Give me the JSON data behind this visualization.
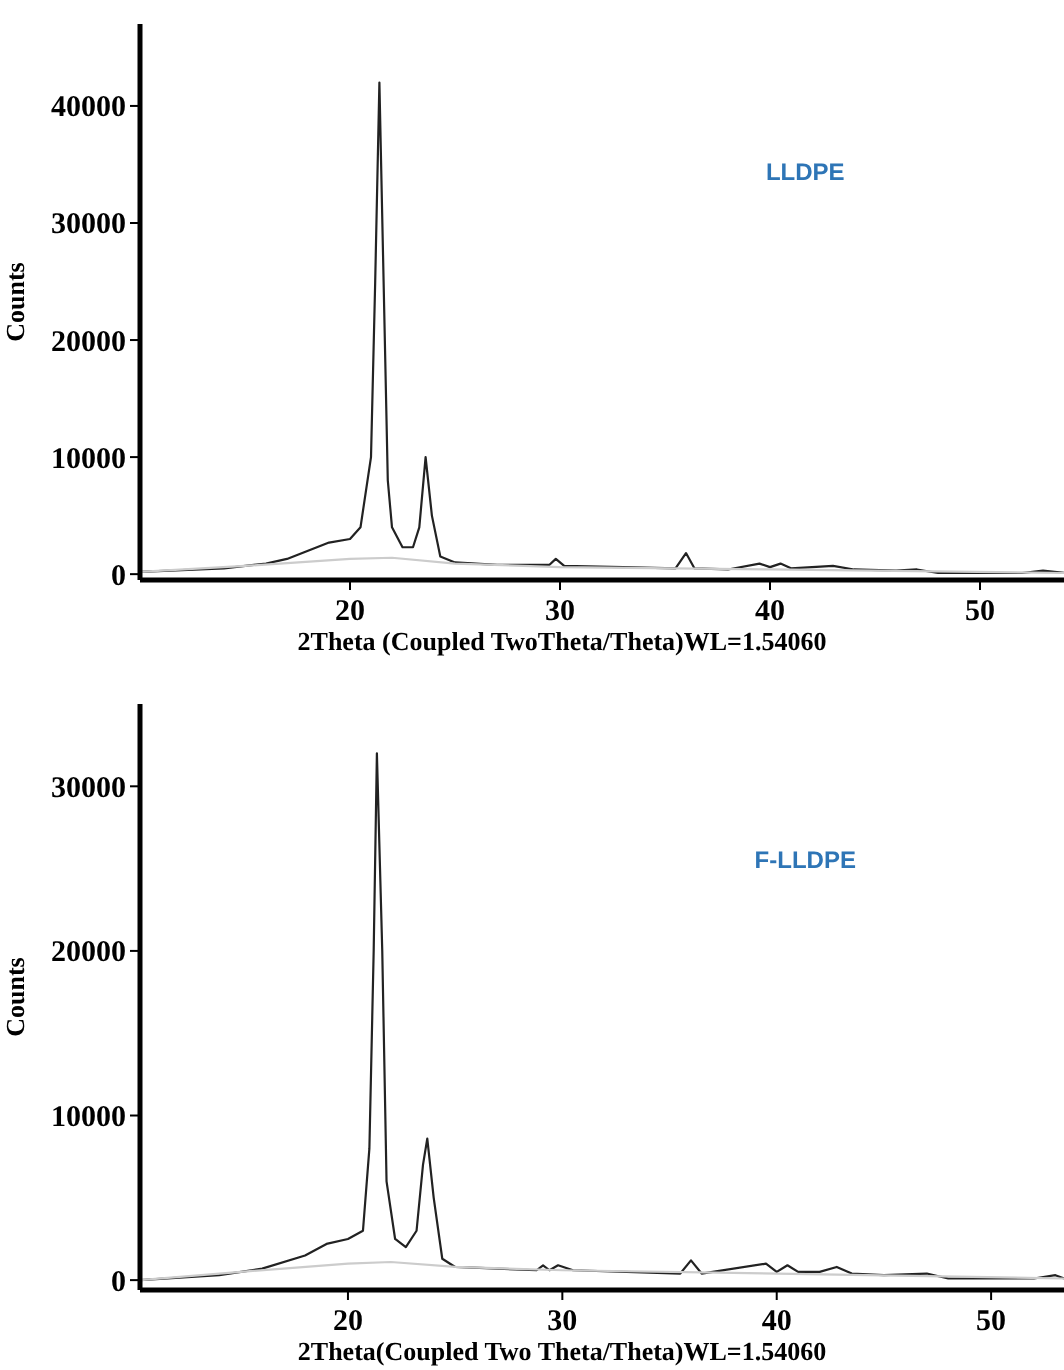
{
  "chart_data": [
    {
      "type": "line",
      "xlabel": "2Theta (Coupled TwoTheta/Theta)WL=1.54060",
      "ylabel": "Counts",
      "annotations": [
        "LLDPE"
      ],
      "xlim": [
        10,
        54
      ],
      "ylim": [
        -500,
        47000
      ],
      "xticks": [
        20,
        30,
        40,
        50
      ],
      "yticks": [
        0,
        10000,
        20000,
        30000,
        40000
      ],
      "grid": false,
      "series": [
        {
          "color": "#222222",
          "x": [
            10,
            14,
            16,
            17,
            18,
            19,
            20,
            20.5,
            21,
            21.2,
            21.4,
            21.6,
            21.8,
            22,
            22.5,
            23,
            23.3,
            23.6,
            23.9,
            24.3,
            25,
            27,
            29.5,
            29.8,
            30.2,
            33,
            35.5,
            36,
            36.4,
            38,
            39.5,
            40,
            40.5,
            41,
            42,
            43,
            44,
            46,
            47,
            48,
            52,
            53,
            54
          ],
          "values": [
            200,
            500,
            900,
            1300,
            2000,
            2700,
            3000,
            4000,
            10000,
            25000,
            42000,
            25000,
            8000,
            4000,
            2300,
            2300,
            4000,
            10000,
            5000,
            1500,
            1000,
            800,
            800,
            1300,
            700,
            600,
            500,
            1800,
            500,
            400,
            900,
            600,
            900,
            500,
            600,
            700,
            400,
            300,
            400,
            100,
            100,
            300,
            100
          ]
        },
        {
          "color": "#cccccc",
          "x": [
            10,
            15,
            20,
            22,
            25,
            30,
            40,
            54
          ],
          "values": [
            200,
            700,
            1300,
            1400,
            900,
            600,
            400,
            100
          ]
        }
      ]
    },
    {
      "type": "line",
      "xlabel": "2Theta(Coupled Two Theta/Theta)WL=1.54060",
      "ylabel": "Counts",
      "annotations": [
        "F-LLDPE"
      ],
      "xlim": [
        10.3,
        53.4
      ],
      "ylim": [
        -600,
        35000
      ],
      "xticks": [
        20,
        30,
        40,
        50
      ],
      "yticks": [
        0,
        10000,
        20000,
        30000
      ],
      "grid": false,
      "series": [
        {
          "color": "#222222",
          "x": [
            10.3,
            14,
            16,
            18,
            19,
            20,
            20.7,
            21,
            21.2,
            21.35,
            21.6,
            21.8,
            22.2,
            22.7,
            23.2,
            23.5,
            23.7,
            24,
            24.4,
            25,
            28.8,
            29.1,
            29.4,
            29.8,
            30.5,
            35.5,
            36,
            36.5,
            39.5,
            40,
            40.5,
            41,
            42,
            42.8,
            43.5,
            45,
            47,
            48,
            52,
            53,
            53.4
          ],
          "values": [
            0,
            300,
            700,
            1500,
            2200,
            2500,
            3000,
            8000,
            20000,
            32000,
            20000,
            6000,
            2500,
            2000,
            3000,
            7000,
            8600,
            5000,
            1300,
            800,
            600,
            900,
            600,
            900,
            600,
            400,
            1200,
            400,
            1000,
            500,
            900,
            500,
            500,
            800,
            400,
            300,
            400,
            100,
            100,
            300,
            100
          ]
        },
        {
          "color": "#cccccc",
          "x": [
            10.3,
            15,
            20,
            22,
            25,
            30,
            40,
            53.4
          ],
          "values": [
            0,
            500,
            1000,
            1100,
            800,
            600,
            400,
            100
          ]
        }
      ]
    }
  ]
}
